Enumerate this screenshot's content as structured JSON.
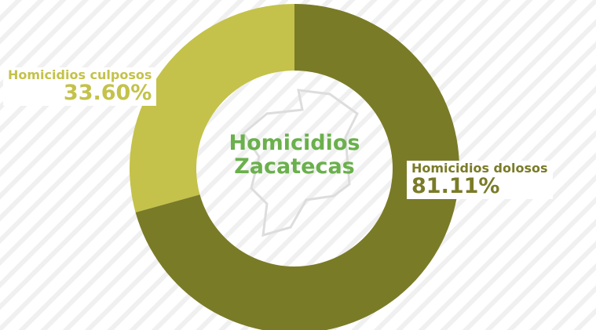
{
  "chart_data": {
    "type": "pie",
    "title": "Homicidios Zacatecas",
    "categories": [
      "Homicidios dolosos",
      "Homicidios culposos"
    ],
    "values": [
      81.11,
      33.6
    ],
    "value_labels": [
      "81.11%",
      "33.60%"
    ],
    "colors": [
      "#7a7b27",
      "#c4c24a"
    ]
  }
}
